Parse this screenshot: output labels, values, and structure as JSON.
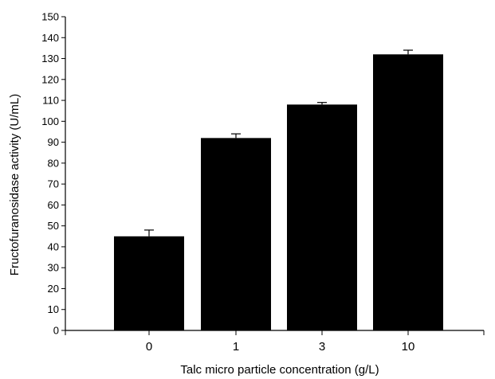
{
  "chart_data": {
    "type": "bar",
    "xlabel": "Talc micro particle concentration (g/L)",
    "ylabel": "Fructofuranosidase activity (U/mL)",
    "categories": [
      "0",
      "1",
      "3",
      "10"
    ],
    "values": [
      45,
      92,
      108,
      132
    ],
    "errors": [
      3,
      2,
      1,
      2
    ],
    "ylim": [
      0,
      150
    ],
    "yticks": [
      0,
      10,
      20,
      30,
      40,
      50,
      60,
      70,
      80,
      90,
      100,
      110,
      120,
      130,
      140,
      150
    ],
    "grid": false,
    "legend": "none",
    "bar_color": "#000000"
  }
}
